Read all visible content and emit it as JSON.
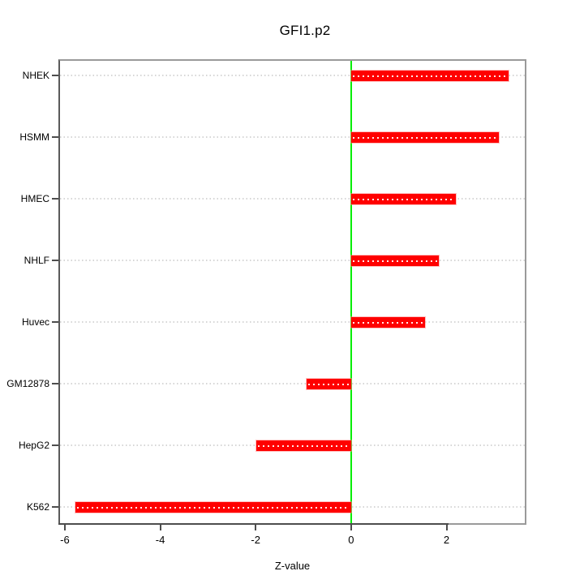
{
  "page": {
    "background": "#ffffff"
  },
  "chart_data": {
    "type": "bar",
    "orientation": "horizontal",
    "title": "GFI1.p2",
    "xlabel": "Z-value",
    "ylabel": "",
    "categories": [
      "NHEK",
      "HSMM",
      "HMEC",
      "NHLF",
      "Huvec",
      "GM12878",
      "HepG2",
      "K562"
    ],
    "values": [
      3.3,
      3.09,
      2.2,
      1.83,
      1.55,
      -0.94,
      -1.99,
      -5.78
    ],
    "xlim": [
      -6.1,
      3.64
    ],
    "xticks": [
      -6,
      -4,
      -2,
      0,
      2
    ],
    "legend": "none",
    "grid": "horizontal-dotted-per-category",
    "zero_reference_line": 0,
    "colors": {
      "bar": "#ff0000",
      "bar_center_dots": "#ffffff",
      "zero_line": "#00ee00",
      "grid": "#d6d6d6",
      "box": "#9a9a9a",
      "axis": "#4d4d4d",
      "text": "#000000"
    }
  }
}
